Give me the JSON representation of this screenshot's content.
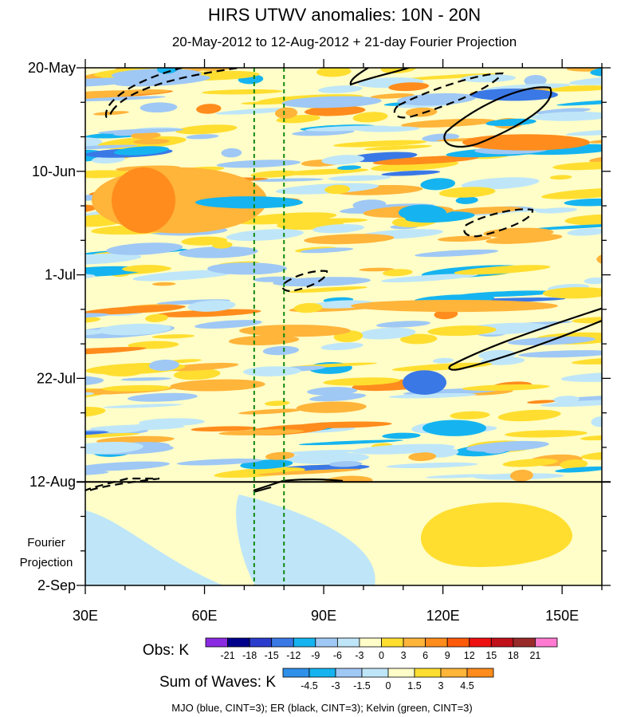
{
  "chart_data": {
    "type": "heatmap",
    "title": "HIRS UTWV anomalies: 10N - 20N",
    "subtitle": "20-May-2012 to 12-Aug-2012 + 21-day Fourier Projection",
    "x_axis": {
      "ticks": [
        "30E",
        "60E",
        "90E",
        "120E",
        "150E"
      ],
      "tick_values": [
        30,
        60,
        90,
        120,
        150
      ],
      "range": [
        30,
        160
      ]
    },
    "y_axis": {
      "ticks": [
        "20-May",
        "10-Jun",
        "1-Jul",
        "22-Jul",
        "12-Aug",
        "2-Sep"
      ],
      "range": [
        "2012-05-20",
        "2012-09-02"
      ],
      "projection_label": "Fourier Projection",
      "projection_start": "2012-08-12"
    },
    "obs_legend": {
      "title": "Obs: K",
      "levels": [
        "-21",
        "-18",
        "-15",
        "-12",
        "-9",
        "-6",
        "-3",
        "0",
        "3",
        "6",
        "9",
        "12",
        "15",
        "18",
        "21"
      ],
      "colors": [
        "#8a2be2",
        "#00008b",
        "#2a3ccc",
        "#3a78e6",
        "#15b4f0",
        "#9fc8f5",
        "#bfe6f8",
        "#fffec8",
        "#ffde30",
        "#ffb43a",
        "#ff8c1c",
        "#ff5a0a",
        "#ee1010",
        "#c0101a",
        "#992a2a",
        "#ff7ad0"
      ]
    },
    "waves_legend": {
      "title": "Sum of Waves: K",
      "levels": [
        "-4.5",
        "-3",
        "-1.5",
        "0",
        "1.5",
        "3",
        "4.5"
      ],
      "colors": [
        "#2e90e8",
        "#15b4f0",
        "#9fc8f5",
        "#bfe6f8",
        "#fffec8",
        "#ffde30",
        "#ffb43a",
        "#ff8c1c"
      ]
    },
    "footnote": "MJO (blue, CINT=3); ER (black, CINT=3); Kelvin (green, CINT=3)",
    "kelvin_lines_lon": [
      72.5,
      80
    ],
    "colors": {
      "obs_neutral": "#fffec8",
      "kelvin": "#118811",
      "er": "#000000"
    }
  }
}
